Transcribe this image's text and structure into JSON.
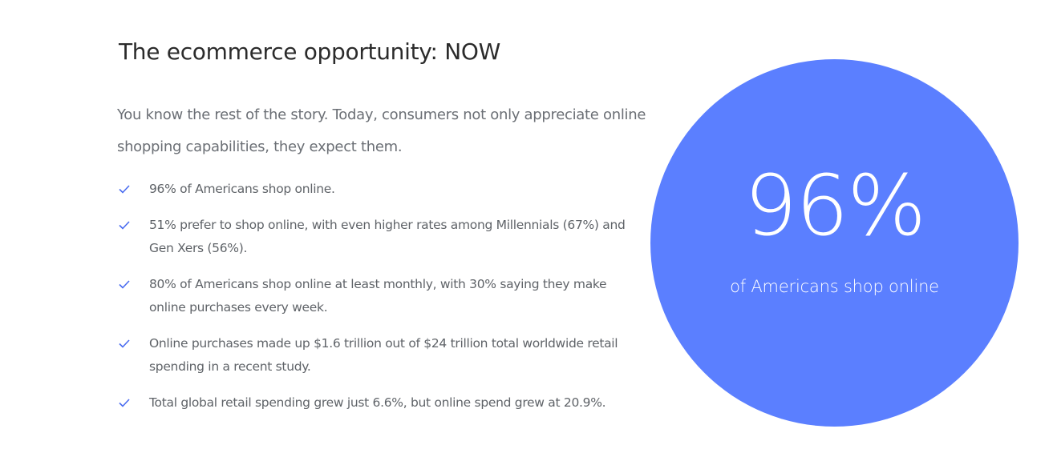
{
  "section": {
    "title": "The ecommerce opportunity: NOW",
    "intro": "You know the rest of the story. Today, consumers not only appreciate online shopping capabilities, they expect them.",
    "bullets": [
      "96% of Americans shop online.",
      "51% prefer to shop online, with even higher rates among Millennials (67%) and Gen Xers (56%).",
      "80% of Americans shop online at least monthly, with 30% saying they make online purchases every week.",
      "Online purchases made up $1.6 trillion out of $24 trillion total worldwide retail spending in a recent study.",
      "Total global retail spending grew just 6.6%, but online spend grew at 20.9%."
    ]
  },
  "stat": {
    "value": "96%",
    "caption": "of Americans shop online"
  }
}
